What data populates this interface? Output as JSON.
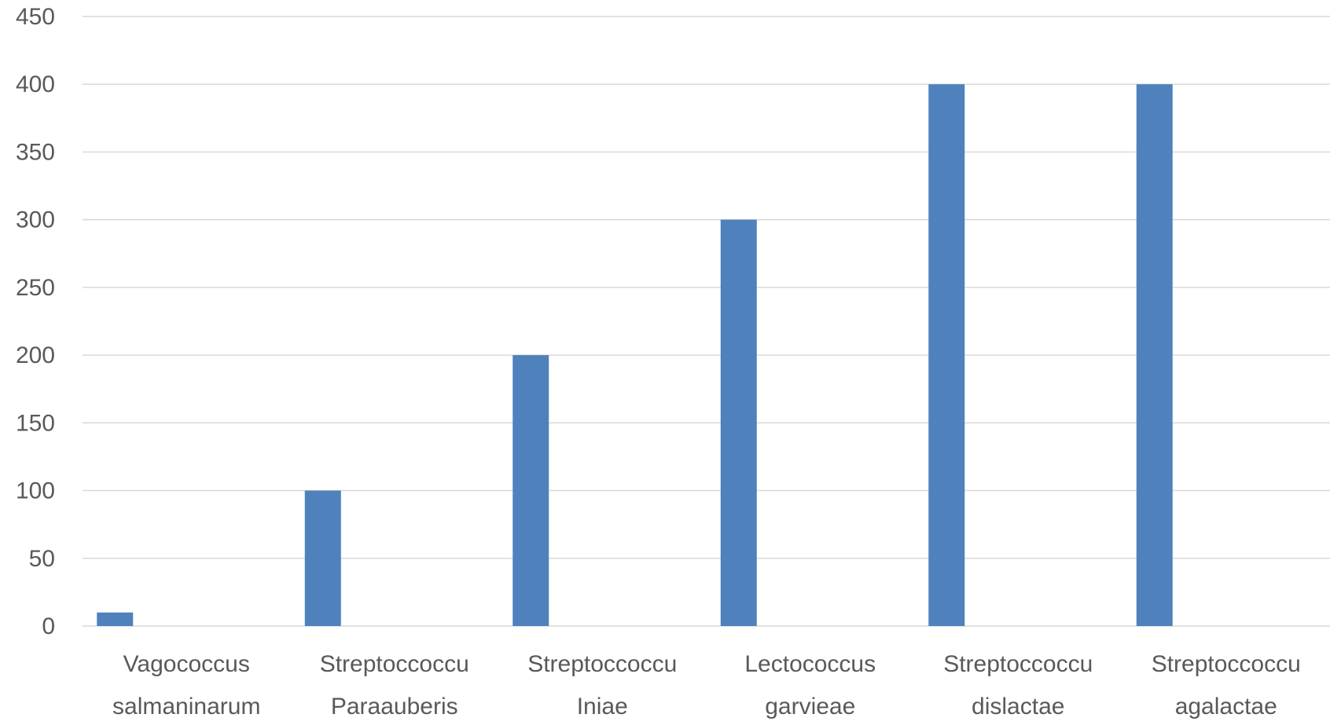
{
  "chart_data": {
    "type": "bar",
    "title": "",
    "xlabel": "",
    "ylabel": "",
    "categories": [
      [
        "Vagococcus",
        "salmaninarum"
      ],
      [
        "Streptoccoccu",
        "Paraauberis"
      ],
      [
        "Streptoccoccu",
        "Iniae"
      ],
      [
        "Lectococcus",
        "garvieae"
      ],
      [
        "Streptoccoccu",
        "dislactae"
      ],
      [
        "Streptoccoccu",
        "agalactae"
      ]
    ],
    "values": [
      10,
      100,
      200,
      300,
      400,
      400
    ],
    "ylim": [
      0,
      450
    ],
    "yticks": [
      0,
      50,
      100,
      150,
      200,
      250,
      300,
      350,
      400,
      450
    ],
    "grid": true,
    "legend": "none",
    "bar_color": "#4f81bd",
    "grid_color": "#d9d9d9",
    "text_color": "#595959"
  }
}
